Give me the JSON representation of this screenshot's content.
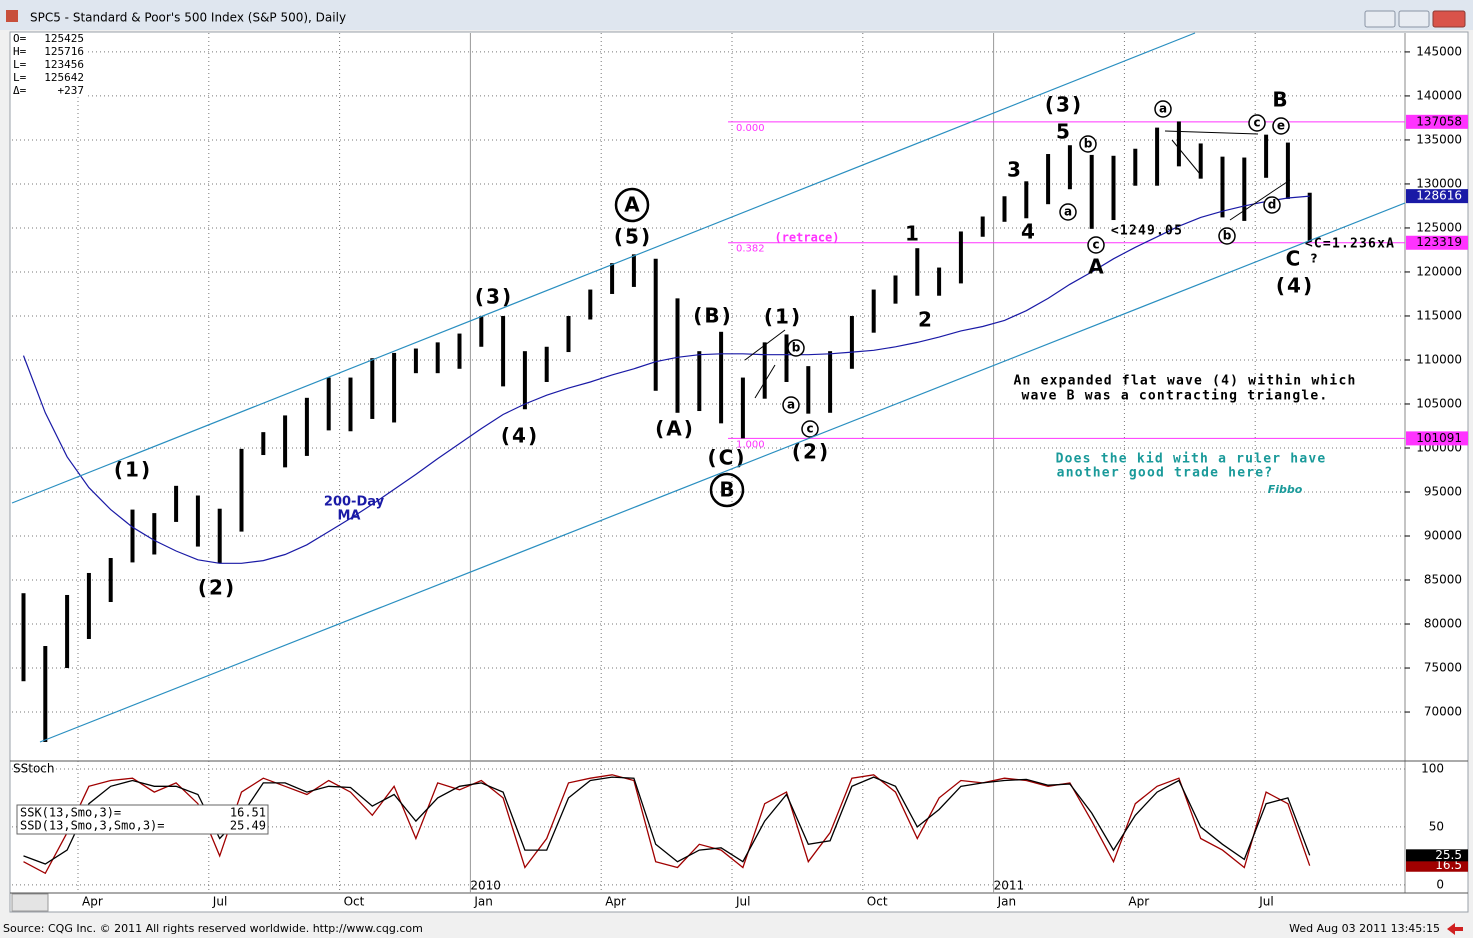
{
  "window": {
    "title": "SPC5 - Standard & Poor's 500 Index (S&P 500), Daily"
  },
  "footer": {
    "source": "Source: CQG Inc. © 2011 All rights reserved worldwide. http://www.cqg.com",
    "timestamp": "Wed Aug 03 2011 13:45:15"
  },
  "chart_data": [
    {
      "type": "hilo",
      "categories": [
        null,
        null,
        null,
        "Apr",
        null,
        null,
        null,
        null,
        null,
        "Jul",
        null,
        null,
        null,
        null,
        null,
        "Oct",
        null,
        null,
        null,
        null,
        null,
        "Jan",
        null,
        null,
        null,
        null,
        null,
        "Apr",
        null,
        null,
        null,
        null,
        null,
        "Jul",
        null,
        null,
        null,
        null,
        null,
        "Oct",
        null,
        null,
        null,
        null,
        null,
        "Jan",
        null,
        null,
        null,
        null,
        null,
        "Apr",
        null,
        null,
        null,
        null,
        null,
        "Jul",
        null,
        null
      ],
      "year_labels": [
        "2010",
        "2011"
      ],
      "highs": [
        83500,
        77500,
        83300,
        85800,
        87500,
        93000,
        92600,
        95700,
        94600,
        93100,
        99900,
        101800,
        103700,
        105700,
        108000,
        108000,
        110200,
        110800,
        111300,
        112000,
        113000,
        115000,
        115000,
        111000,
        111500,
        115000,
        118000,
        121000,
        122000,
        121500,
        117000,
        111000,
        113200,
        108000,
        112000,
        112900,
        109300,
        111000,
        115000,
        118000,
        119600,
        122700,
        120500,
        124600,
        126300,
        128600,
        130300,
        133400,
        134400,
        133300,
        133200,
        134000,
        136400,
        137100,
        134600,
        133100,
        133000,
        135600,
        134700,
        129000
      ],
      "lows": [
        73500,
        66600,
        75000,
        78300,
        82500,
        87000,
        87900,
        91600,
        88800,
        86900,
        90500,
        99200,
        97800,
        99100,
        102000,
        101900,
        103300,
        102900,
        108500,
        108500,
        109000,
        111500,
        107000,
        104400,
        107500,
        110900,
        114600,
        117500,
        118300,
        106500,
        104000,
        104200,
        102800,
        101100,
        105600,
        107500,
        103900,
        104000,
        109000,
        113100,
        116400,
        117300,
        117300,
        118700,
        124000,
        125700,
        126100,
        127700,
        129400,
        124900,
        125900,
        129800,
        129800,
        132000,
        130600,
        126200,
        125800,
        130700,
        128300,
        123456
      ],
      "color": "#000000",
      "ma": {
        "label_lines": [
          "200-Day",
          "MA"
        ],
        "color": "#1a1aa6",
        "values": [
          110500,
          104000,
          99000,
          95500,
          93000,
          91000,
          89500,
          88300,
          87300,
          86900,
          86900,
          87200,
          87900,
          89000,
          90500,
          92000,
          93600,
          95300,
          97000,
          98800,
          100500,
          102200,
          103800,
          105000,
          106000,
          106800,
          107500,
          108300,
          109000,
          109800,
          110300,
          110600,
          110700,
          110700,
          110600,
          110600,
          110600,
          110700,
          110900,
          111100,
          111500,
          112000,
          112600,
          113300,
          113800,
          114500,
          115600,
          117000,
          118600,
          120000,
          121500,
          122800,
          124000,
          125200,
          126200,
          126900,
          127500,
          128000,
          128400,
          128616
        ]
      },
      "info": [
        {
          "name": "O=",
          "value": 125425
        },
        {
          "name": "H=",
          "value": 125716
        },
        {
          "name": "L=",
          "value": 123456
        },
        {
          "name": "L=",
          "value": 125642
        },
        {
          "name": "Δ=",
          "value": 237,
          "value_label": "+237"
        }
      ],
      "ylim": [
        64550,
        147150
      ],
      "yticks": [
        70000,
        75000,
        80000,
        85000,
        90000,
        95000,
        100000,
        105000,
        110000,
        115000,
        120000,
        125000,
        130000,
        135000,
        140000,
        145000
      ],
      "grid": true,
      "hlines": [
        {
          "value": 137058,
          "label": "0.000"
        },
        {
          "value": 123319,
          "label": "0.382"
        },
        {
          "value": 101091,
          "label": "1.000"
        }
      ],
      "hline_color": "#ff33ff",
      "annotations": [
        "(1)",
        "(2)",
        "(3)",
        "(4)",
        "(5)",
        "A",
        "(A)",
        "(B)",
        "(C)",
        "B",
        "(1)",
        "(2)",
        "b",
        "a",
        "c",
        "1",
        "2",
        "3",
        "4",
        "5",
        "(3)",
        "b",
        "a",
        "c",
        "A",
        "<1249.05",
        "a",
        "B",
        "c",
        "e",
        "d",
        "b",
        "C",
        "?",
        "(4)",
        "<C=1.236xA",
        "(retrace)",
        "An expanded flat wave (4) within which",
        "wave B was a contracting triangle.",
        "Does the kid with a ruler have",
        "another good trade here?",
        "Fibbo"
      ]
    },
    {
      "type": "line",
      "title": "SStoch",
      "series": [
        {
          "name": "SSK(13,Smo,3)=",
          "color": "#a00000",
          "box_label": "16.5",
          "values": [
            20,
            10,
            45,
            85,
            90,
            92,
            80,
            88,
            70,
            25,
            80,
            92,
            85,
            78,
            90,
            80,
            60,
            85,
            40,
            88,
            82,
            90,
            75,
            15,
            40,
            88,
            92,
            95,
            90,
            20,
            15,
            35,
            30,
            15,
            70,
            80,
            20,
            45,
            92,
            95,
            80,
            40,
            75,
            90,
            88,
            92,
            90,
            85,
            88,
            55,
            20,
            70,
            85,
            92,
            40,
            30,
            15,
            80,
            70,
            16.51
          ]
        },
        {
          "name": "SSD(13,Smo,3,Smo,3)=",
          "color": "#000000",
          "box_label": "25.5",
          "values": [
            25,
            18,
            30,
            70,
            85,
            90,
            85,
            85,
            78,
            40,
            60,
            88,
            88,
            80,
            85,
            84,
            68,
            78,
            55,
            75,
            85,
            88,
            80,
            30,
            30,
            75,
            90,
            93,
            92,
            35,
            20,
            30,
            32,
            20,
            55,
            78,
            35,
            38,
            85,
            93,
            85,
            50,
            65,
            85,
            88,
            90,
            91,
            86,
            87,
            62,
            30,
            60,
            80,
            90,
            50,
            35,
            22,
            70,
            75,
            25.49
          ]
        }
      ],
      "ylim": [
        -7,
        106
      ],
      "yticks": [
        0,
        50,
        100
      ],
      "grid": true
    }
  ]
}
